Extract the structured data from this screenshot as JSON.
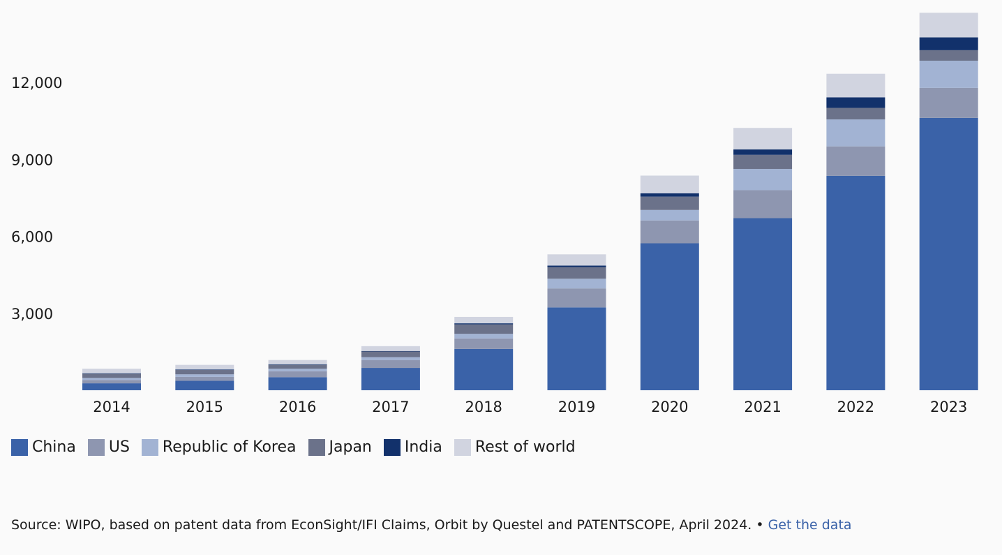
{
  "chart_data": {
    "type": "bar",
    "stacked": true,
    "title": "",
    "xlabel": "",
    "ylabel": "",
    "categories": [
      "2014",
      "2015",
      "2016",
      "2017",
      "2018",
      "2019",
      "2020",
      "2021",
      "2022",
      "2023"
    ],
    "ylim": [
      0,
      14700
    ],
    "yticks": [
      3000,
      6000,
      9000,
      12000
    ],
    "ytick_labels": [
      "3,000",
      "6,000",
      "9,000",
      "12,000"
    ],
    "series": [
      {
        "name": "China",
        "color": "#3a62a8",
        "values": [
          270,
          370,
          510,
          870,
          1610,
          3230,
          5730,
          6710,
          8360,
          10620
        ]
      },
      {
        "name": "US",
        "color": "#8e96b0",
        "values": [
          130,
          150,
          230,
          310,
          410,
          740,
          890,
          1090,
          1150,
          1170
        ]
      },
      {
        "name": "Republic of Korea",
        "color": "#a2b3d3",
        "values": [
          80,
          100,
          100,
          110,
          180,
          380,
          410,
          830,
          1050,
          1060
        ]
      },
      {
        "name": "Japan",
        "color": "#6b728a",
        "values": [
          160,
          170,
          150,
          220,
          370,
          450,
          520,
          550,
          450,
          410
        ]
      },
      {
        "name": "India",
        "color": "#12316b",
        "values": [
          20,
          20,
          20,
          20,
          40,
          60,
          130,
          210,
          410,
          500
        ]
      },
      {
        "name": "Rest of world",
        "color": "#d1d4e0",
        "values": [
          180,
          180,
          170,
          190,
          250,
          440,
          690,
          840,
          920,
          960
        ]
      }
    ],
    "legend_position": "bottom-left"
  },
  "source": {
    "text": "Source: WIPO, based on patent data from EconSight/IFI Claims, Orbit by Questel and PATENTSCOPE, April 2024. • ",
    "link_label": "Get the data"
  }
}
